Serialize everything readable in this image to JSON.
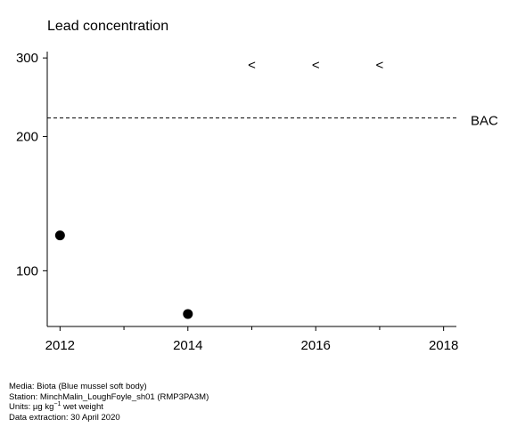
{
  "chart_data": {
    "type": "scatter",
    "title": "Lead concentration",
    "xlabel": "",
    "ylabel": "",
    "xlim": [
      2011.8,
      2018.2
    ],
    "ylim": [
      75,
      310
    ],
    "y_scale": "log",
    "grid": false,
    "x_ticks": [
      2012,
      2013,
      2014,
      2015,
      2016,
      2017,
      2018
    ],
    "x_tick_labels": [
      "2012",
      "",
      "2014",
      "",
      "2016",
      "",
      "2018"
    ],
    "y_ticks": [
      100,
      200,
      300
    ],
    "y_tick_labels": [
      "100",
      "200",
      "300"
    ],
    "points": [
      {
        "x": 2012,
        "y": 120
      },
      {
        "x": 2014,
        "y": 80
      }
    ],
    "less_than_markers": [
      {
        "x": 2015,
        "symbol": "<"
      },
      {
        "x": 2016,
        "symbol": "<"
      },
      {
        "x": 2017,
        "symbol": "<"
      }
    ],
    "reference_lines": [
      {
        "label": "BAC",
        "y": 220,
        "style": "dashed"
      }
    ]
  },
  "footer": {
    "media": "Media: Biota (Blue mussel soft body)",
    "station": "Station: MinchMalin_LoughFoyle_sh01 (RMP3PA3M)",
    "units_prefix": "Units:  µg kg",
    "units_exponent": "−1",
    "units_suffix": " wet weight",
    "extraction": "Data extraction: 30 April 2020"
  }
}
